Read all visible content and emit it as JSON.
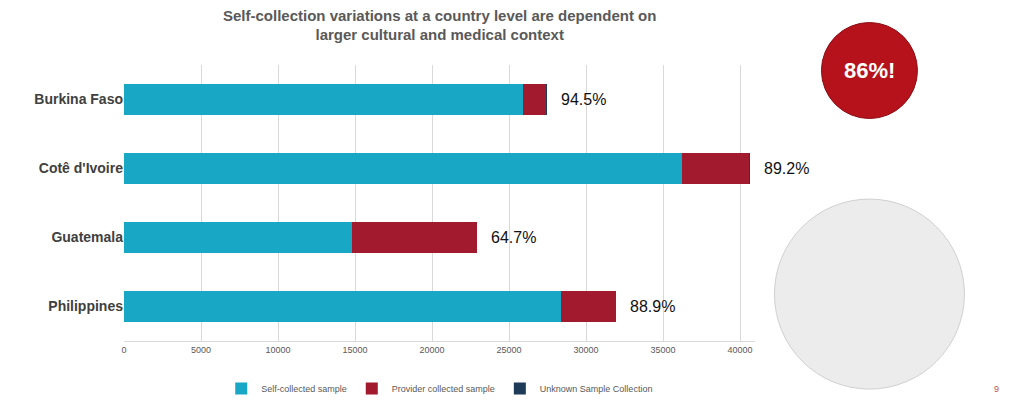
{
  "chart_data": {
    "type": "bar",
    "orientation": "horizontal",
    "stacked": true,
    "title": "Self-collection variations at a country level are dependent on larger cultural and medical context",
    "categories": [
      "Burkina Faso",
      "Cotê d'Ivoire",
      "Guatemala",
      "Philippines"
    ],
    "series": [
      {
        "name": "Self-collected sample",
        "color": "#19a7c6",
        "values": [
          25900,
          36200,
          14800,
          28400
        ]
      },
      {
        "name": "Provider collected sample",
        "color": "#a11a2e",
        "values": [
          1500,
          4400,
          8100,
          3550
        ]
      },
      {
        "name": "Unknown Sample Collection",
        "color": "#1f3b5a",
        "values": [
          80,
          60,
          0,
          0
        ]
      }
    ],
    "total_labels": [
      "94.5%",
      "89.2%",
      "64.7%",
      "88.9%"
    ],
    "annotations": [
      "86%!",
      "9"
    ],
    "xlim": [
      0,
      41000
    ],
    "xticks": [
      0,
      5000,
      10000,
      15000,
      20000,
      25000,
      30000,
      35000,
      40000
    ],
    "grid": true,
    "legend": "bottom"
  }
}
